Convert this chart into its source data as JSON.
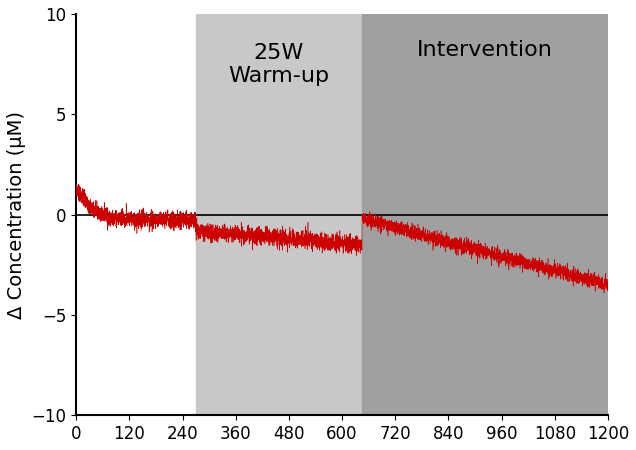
{
  "xlim": [
    0,
    1200
  ],
  "ylim": [
    -10,
    10
  ],
  "xticks": [
    0,
    120,
    240,
    360,
    480,
    600,
    720,
    840,
    960,
    1080,
    1200
  ],
  "yticks": [
    -10,
    -5,
    0,
    5,
    10
  ],
  "ylabel": "Δ Concentration (μM)",
  "warmup_start": 270,
  "warmup_end": 645,
  "intervention_start": 645,
  "intervention_end": 1200,
  "warmup_label": "25W\nWarm-up",
  "intervention_label": "Intervention",
  "warmup_color": "#c8c8c8",
  "intervention_color": "#a0a0a0",
  "line_color": "#cc0000",
  "hline_color": "black",
  "label_fontsize": 14,
  "region_label_fontsize": 16,
  "tick_fontsize": 12,
  "fig_bg_color": "#ffffff",
  "axes_bg_color": "#ffffff"
}
